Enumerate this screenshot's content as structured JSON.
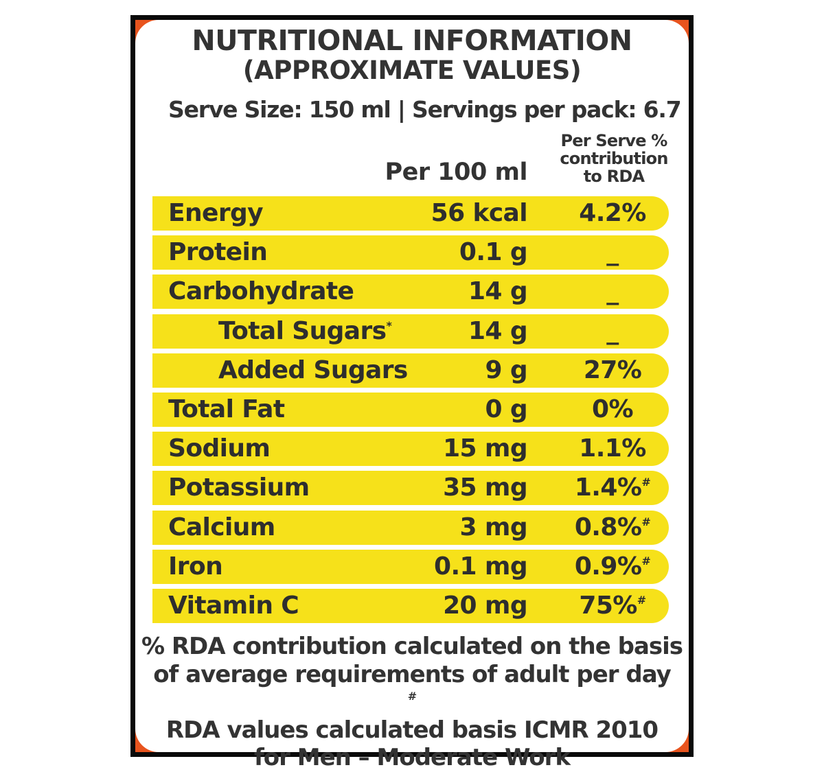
{
  "label": {
    "title_line1": "NUTRITIONAL INFORMATION",
    "title_line2": "(APPROXIMATE VALUES)",
    "serve_info": "Serve Size: 150 ml | Servings per pack: 6.7",
    "col_per100": "Per 100 ml",
    "col_rda": [
      "Per Serve %",
      "contribution",
      "to RDA"
    ]
  },
  "colors": {
    "row_fill": "#f6e11a",
    "frame": "#0a0a0a",
    "corner_accent": "#e8541e"
  },
  "rows": [
    {
      "name": "Energy",
      "value": "56 kcal",
      "rda": "4.2%",
      "mark": "",
      "name_mark": "",
      "indent": false
    },
    {
      "name": "Protein",
      "value": "0.1 g",
      "rda": "_",
      "mark": "",
      "name_mark": "",
      "indent": false
    },
    {
      "name": "Carbohydrate",
      "value": "14 g",
      "rda": "_",
      "mark": "",
      "name_mark": "",
      "indent": false
    },
    {
      "name": "Total Sugars",
      "value": "14 g",
      "rda": "_",
      "mark": "",
      "name_mark": "*",
      "indent": true
    },
    {
      "name": "Added Sugars",
      "value": "9 g",
      "rda": "27%",
      "mark": "",
      "name_mark": "",
      "indent": true
    },
    {
      "name": "Total Fat",
      "value": "0 g",
      "rda": "0%",
      "mark": "",
      "name_mark": "",
      "indent": false
    },
    {
      "name": "Sodium",
      "value": "15 mg",
      "rda": "1.1%",
      "mark": "",
      "name_mark": "",
      "indent": false
    },
    {
      "name": "Potassium",
      "value": "35 mg",
      "rda": "1.4%",
      "mark": "#",
      "name_mark": "",
      "indent": false
    },
    {
      "name": "Calcium",
      "value": "3 mg",
      "rda": "0.8%",
      "mark": "#",
      "name_mark": "",
      "indent": false
    },
    {
      "name": "Iron",
      "value": "0.1 mg",
      "rda": "0.9%",
      "mark": "#",
      "name_mark": "",
      "indent": false
    },
    {
      "name": "Vitamin C",
      "value": "20 mg",
      "rda": "75%",
      "mark": "#",
      "name_mark": "",
      "indent": false
    }
  ],
  "footnote": {
    "line1": "% RDA contribution calculated on the basis",
    "line2": "of average requirements of adult per day",
    "line3_mark": "#",
    "line3": "RDA values calculated basis ICMR 2010",
    "line4": "for Men – Moderate Work"
  }
}
